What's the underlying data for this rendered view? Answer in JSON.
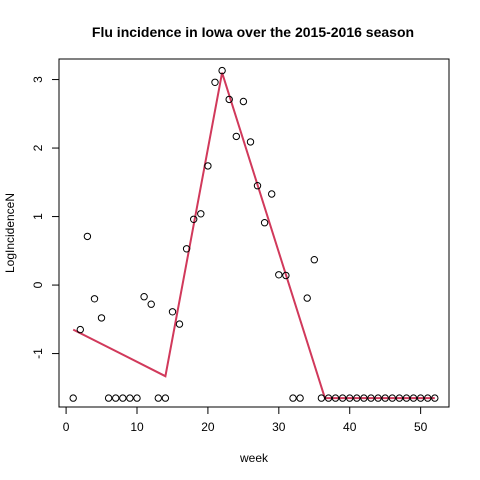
{
  "chart_data": {
    "type": "scatter",
    "title": "Flu incidence in Iowa over the 2015-2016 season",
    "xlabel": "week",
    "ylabel": "LogIncidenceN",
    "xlim": [
      -1,
      54
    ],
    "ylim": [
      -1.78,
      3.3
    ],
    "x_ticks": [
      0,
      10,
      20,
      30,
      40,
      50
    ],
    "y_ticks": [
      -1,
      0,
      1,
      2,
      3
    ],
    "grid": false,
    "legend": "none",
    "series": [
      {
        "kind": "points",
        "marker": "open-circle",
        "color": "#000000",
        "points": [
          [
            1,
            -1.65
          ],
          [
            2,
            -0.65
          ],
          [
            3,
            0.71
          ],
          [
            4,
            -0.2
          ],
          [
            5,
            -0.48
          ],
          [
            6,
            -1.65
          ],
          [
            7,
            -1.65
          ],
          [
            8,
            -1.65
          ],
          [
            9,
            -1.65
          ],
          [
            10,
            -1.65
          ],
          [
            11,
            -0.17
          ],
          [
            12,
            -0.28
          ],
          [
            13,
            -1.65
          ],
          [
            14,
            -1.65
          ],
          [
            15,
            -0.39
          ],
          [
            16,
            -0.57
          ],
          [
            17,
            0.53
          ],
          [
            18,
            0.96
          ],
          [
            19,
            1.04
          ],
          [
            20,
            1.74
          ],
          [
            21,
            2.96
          ],
          [
            22,
            3.13
          ],
          [
            23,
            2.71
          ],
          [
            24,
            2.17
          ],
          [
            25,
            2.68
          ],
          [
            26,
            2.09
          ],
          [
            27,
            1.45
          ],
          [
            28,
            0.91
          ],
          [
            29,
            1.33
          ],
          [
            30,
            0.15
          ],
          [
            31,
            0.14
          ],
          [
            32,
            -1.65
          ],
          [
            33,
            -1.65
          ],
          [
            34,
            -0.19
          ],
          [
            35,
            0.37
          ],
          [
            36,
            -1.65
          ],
          [
            37,
            -1.65
          ],
          [
            38,
            -1.65
          ],
          [
            39,
            -1.65
          ],
          [
            40,
            -1.65
          ],
          [
            41,
            -1.65
          ],
          [
            42,
            -1.65
          ],
          [
            43,
            -1.65
          ],
          [
            44,
            -1.65
          ],
          [
            45,
            -1.65
          ],
          [
            46,
            -1.65
          ],
          [
            47,
            -1.65
          ],
          [
            48,
            -1.65
          ],
          [
            49,
            -1.65
          ],
          [
            50,
            -1.65
          ],
          [
            51,
            -1.65
          ],
          [
            52,
            -1.65
          ]
        ]
      },
      {
        "kind": "line",
        "color": "#d1395b",
        "points": [
          [
            1,
            -0.65
          ],
          [
            14,
            -1.33
          ],
          [
            22,
            3.1
          ],
          [
            36.5,
            -1.65
          ],
          [
            52,
            -1.65
          ]
        ]
      }
    ]
  }
}
